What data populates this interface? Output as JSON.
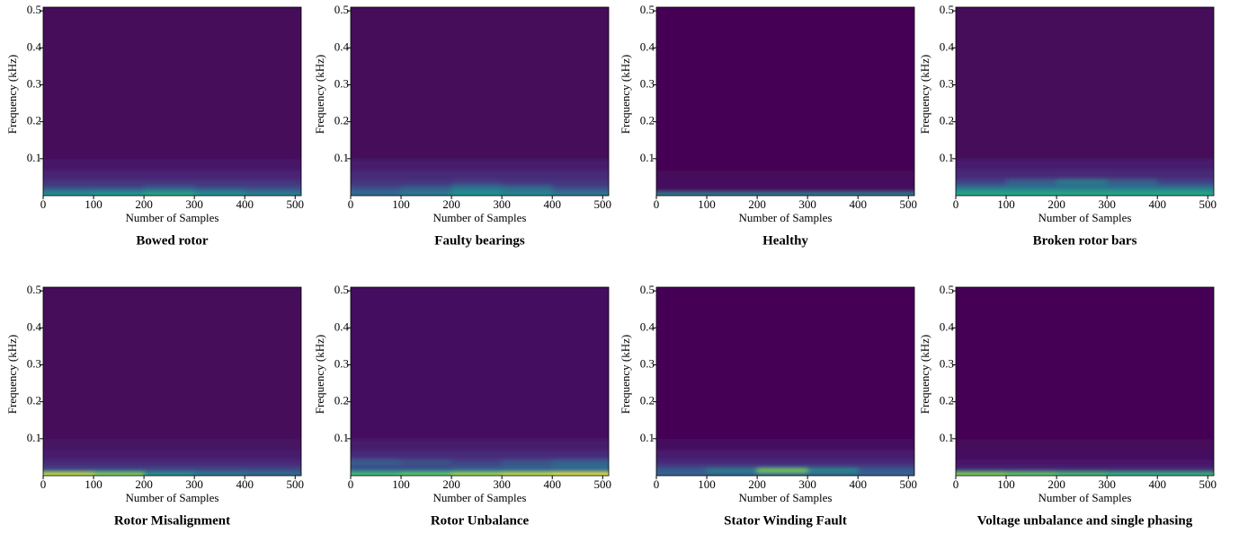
{
  "chart_data": [
    {
      "type": "heatmap",
      "title": "Bowed rotor",
      "xlabel": "Number of Samples",
      "ylabel": "Frequency (kHz)",
      "colormap": "viridis",
      "clim": [
        0,
        1
      ],
      "xbins": [
        0,
        100,
        200,
        300,
        400,
        512
      ],
      "ybins": [
        0,
        0.01,
        0.02,
        0.03,
        0.045,
        0.07,
        0.1,
        0.51
      ],
      "values": [
        [
          0.5,
          0.55,
          0.6,
          0.5,
          0.45
        ],
        [
          0.35,
          0.35,
          0.4,
          0.35,
          0.3
        ],
        [
          0.2,
          0.2,
          0.25,
          0.2,
          0.2
        ],
        [
          0.15,
          0.15,
          0.15,
          0.15,
          0.15
        ],
        [
          0.1,
          0.1,
          0.1,
          0.1,
          0.1
        ],
        [
          0.06,
          0.06,
          0.06,
          0.06,
          0.06
        ],
        [
          0.02,
          0.02,
          0.02,
          0.02,
          0.02
        ]
      ],
      "xlim": [
        0,
        512
      ],
      "ylim": [
        0,
        0.51
      ],
      "xticks": [
        0,
        100,
        200,
        300,
        400,
        500
      ],
      "yticks": [
        0.1,
        0.2,
        0.3,
        0.4,
        0.5
      ]
    },
    {
      "type": "heatmap",
      "title": "Faulty bearings",
      "xlabel": "Number of Samples",
      "ylabel": "Frequency (kHz)",
      "colormap": "viridis",
      "clim": [
        0,
        1
      ],
      "xbins": [
        0,
        100,
        200,
        300,
        400,
        512
      ],
      "ybins": [
        0,
        0.01,
        0.02,
        0.03,
        0.045,
        0.07,
        0.1,
        0.51
      ],
      "values": [
        [
          0.35,
          0.4,
          0.5,
          0.45,
          0.4
        ],
        [
          0.3,
          0.35,
          0.45,
          0.4,
          0.3
        ],
        [
          0.2,
          0.25,
          0.35,
          0.3,
          0.2
        ],
        [
          0.15,
          0.15,
          0.18,
          0.15,
          0.15
        ],
        [
          0.12,
          0.12,
          0.12,
          0.12,
          0.12
        ],
        [
          0.07,
          0.07,
          0.07,
          0.07,
          0.07
        ],
        [
          0.02,
          0.02,
          0.02,
          0.02,
          0.02
        ]
      ],
      "xlim": [
        0,
        512
      ],
      "ylim": [
        0,
        0.51
      ],
      "xticks": [
        0,
        100,
        200,
        300,
        400,
        500
      ],
      "yticks": [
        0.1,
        0.2,
        0.3,
        0.4,
        0.5
      ]
    },
    {
      "type": "heatmap",
      "title": "Healthy",
      "xlabel": "Number of Samples",
      "ylabel": "Frequency (kHz)",
      "colormap": "viridis",
      "clim": [
        0,
        1
      ],
      "xbins": [
        0,
        100,
        200,
        300,
        400,
        512
      ],
      "ybins": [
        0,
        0.01,
        0.02,
        0.03,
        0.045,
        0.07,
        0.1,
        0.51
      ],
      "values": [
        [
          0.4,
          0.4,
          0.4,
          0.4,
          0.4
        ],
        [
          0.05,
          0.05,
          0.05,
          0.05,
          0.05
        ],
        [
          0.03,
          0.03,
          0.03,
          0.03,
          0.03
        ],
        [
          0.03,
          0.03,
          0.03,
          0.03,
          0.03
        ],
        [
          0.02,
          0.02,
          0.02,
          0.02,
          0.02
        ],
        [
          0.01,
          0.01,
          0.01,
          0.01,
          0.01
        ],
        [
          0,
          0,
          0,
          0,
          0
        ]
      ],
      "xlim": [
        0,
        512
      ],
      "ylim": [
        0,
        0.51
      ],
      "xticks": [
        0,
        100,
        200,
        300,
        400,
        500
      ],
      "yticks": [
        0.1,
        0.2,
        0.3,
        0.4,
        0.5
      ]
    },
    {
      "type": "heatmap",
      "title": "Broken rotor bars",
      "xlabel": "Number of Samples",
      "ylabel": "Frequency (kHz)",
      "colormap": "viridis",
      "clim": [
        0,
        1
      ],
      "xbins": [
        0,
        100,
        200,
        300,
        400,
        512
      ],
      "ybins": [
        0,
        0.01,
        0.02,
        0.03,
        0.045,
        0.07,
        0.1,
        0.51
      ],
      "values": [
        [
          0.6,
          0.6,
          0.6,
          0.6,
          0.6
        ],
        [
          0.5,
          0.5,
          0.5,
          0.5,
          0.5
        ],
        [
          0.35,
          0.35,
          0.35,
          0.35,
          0.35
        ],
        [
          0.2,
          0.3,
          0.4,
          0.3,
          0.2
        ],
        [
          0.12,
          0.12,
          0.12,
          0.12,
          0.12
        ],
        [
          0.08,
          0.08,
          0.08,
          0.08,
          0.08
        ],
        [
          0.02,
          0.02,
          0.02,
          0.02,
          0.02
        ]
      ],
      "xlim": [
        0,
        512
      ],
      "ylim": [
        0,
        0.51
      ],
      "xticks": [
        0,
        100,
        200,
        300,
        400,
        500
      ],
      "yticks": [
        0.1,
        0.2,
        0.3,
        0.4,
        0.5
      ]
    },
    {
      "type": "heatmap",
      "title": "Rotor Misalignment",
      "xlabel": "Number of Samples",
      "ylabel": "Frequency (kHz)",
      "colormap": "viridis",
      "clim": [
        0,
        1
      ],
      "xbins": [
        0,
        100,
        200,
        300,
        400,
        512
      ],
      "ybins": [
        0,
        0.01,
        0.02,
        0.03,
        0.045,
        0.07,
        0.1,
        0.51
      ],
      "values": [
        [
          0.9,
          0.8,
          0.5,
          0.4,
          0.35
        ],
        [
          0.25,
          0.25,
          0.25,
          0.25,
          0.25
        ],
        [
          0.15,
          0.15,
          0.15,
          0.15,
          0.15
        ],
        [
          0.12,
          0.12,
          0.12,
          0.12,
          0.12
        ],
        [
          0.08,
          0.08,
          0.08,
          0.08,
          0.08
        ],
        [
          0.05,
          0.05,
          0.05,
          0.05,
          0.05
        ],
        [
          0.02,
          0.02,
          0.02,
          0.02,
          0.02
        ]
      ],
      "xlim": [
        0,
        512
      ],
      "ylim": [
        0,
        0.51
      ],
      "xticks": [
        0,
        100,
        200,
        300,
        400,
        500
      ],
      "yticks": [
        0.1,
        0.2,
        0.3,
        0.4,
        0.5
      ]
    },
    {
      "type": "heatmap",
      "title": "Rotor Unbalance",
      "xlabel": "Number of Samples",
      "ylabel": "Frequency (kHz)",
      "colormap": "viridis",
      "clim": [
        0,
        1
      ],
      "xbins": [
        0,
        100,
        200,
        300,
        400,
        512
      ],
      "ybins": [
        0,
        0.01,
        0.02,
        0.03,
        0.045,
        0.07,
        0.1,
        0.51
      ],
      "values": [
        [
          0.7,
          0.75,
          0.85,
          0.9,
          0.95
        ],
        [
          0.35,
          0.35,
          0.35,
          0.35,
          0.35
        ],
        [
          0.2,
          0.2,
          0.25,
          0.3,
          0.35
        ],
        [
          0.3,
          0.25,
          0.2,
          0.25,
          0.3
        ],
        [
          0.12,
          0.12,
          0.12,
          0.12,
          0.12
        ],
        [
          0.07,
          0.07,
          0.07,
          0.07,
          0.07
        ],
        [
          0.03,
          0.03,
          0.03,
          0.03,
          0.03
        ]
      ],
      "xlim": [
        0,
        512
      ],
      "ylim": [
        0,
        0.51
      ],
      "xticks": [
        0,
        100,
        200,
        300,
        400,
        500
      ],
      "yticks": [
        0.1,
        0.2,
        0.3,
        0.4,
        0.5
      ]
    },
    {
      "type": "heatmap",
      "title": "Stator Winding Fault",
      "xlabel": "Number of Samples",
      "ylabel": "Frequency (kHz)",
      "colormap": "viridis",
      "clim": [
        0,
        1
      ],
      "xbins": [
        0,
        100,
        200,
        300,
        400,
        512
      ],
      "ybins": [
        0,
        0.01,
        0.02,
        0.03,
        0.045,
        0.07,
        0.1,
        0.51
      ],
      "values": [
        [
          0.3,
          0.3,
          0.3,
          0.3,
          0.3
        ],
        [
          0.3,
          0.45,
          0.8,
          0.5,
          0.3
        ],
        [
          0.2,
          0.2,
          0.2,
          0.2,
          0.2
        ],
        [
          0.12,
          0.12,
          0.12,
          0.12,
          0.12
        ],
        [
          0.08,
          0.08,
          0.08,
          0.08,
          0.08
        ],
        [
          0.04,
          0.04,
          0.04,
          0.04,
          0.04
        ],
        [
          0.01,
          0.01,
          0.01,
          0.01,
          0.01
        ]
      ],
      "xlim": [
        0,
        512
      ],
      "ylim": [
        0,
        0.51
      ],
      "xticks": [
        0,
        100,
        200,
        300,
        400,
        500
      ],
      "yticks": [
        0.1,
        0.2,
        0.3,
        0.4,
        0.5
      ]
    },
    {
      "type": "heatmap",
      "title": "Voltage unbalance and single phasing",
      "xlabel": "Number of Samples",
      "ylabel": "Frequency (kHz)",
      "colormap": "viridis",
      "clim": [
        0,
        1
      ],
      "xbins": [
        0,
        100,
        200,
        300,
        400,
        512
      ],
      "ybins": [
        0,
        0.01,
        0.02,
        0.03,
        0.045,
        0.07,
        0.1,
        0.51
      ],
      "values": [
        [
          0.8,
          0.75,
          0.7,
          0.65,
          0.65
        ],
        [
          0.15,
          0.15,
          0.15,
          0.15,
          0.15
        ],
        [
          0.08,
          0.08,
          0.08,
          0.08,
          0.08
        ],
        [
          0.06,
          0.06,
          0.06,
          0.06,
          0.06
        ],
        [
          0.04,
          0.04,
          0.04,
          0.04,
          0.04
        ],
        [
          0.02,
          0.02,
          0.02,
          0.02,
          0.02
        ],
        [
          0.01,
          0.01,
          0.01,
          0.01,
          0.01
        ]
      ],
      "xlim": [
        0,
        512
      ],
      "ylim": [
        0,
        0.51
      ],
      "xticks": [
        0,
        100,
        200,
        300,
        400,
        500
      ],
      "yticks": [
        0.1,
        0.2,
        0.3,
        0.4,
        0.5
      ]
    }
  ]
}
